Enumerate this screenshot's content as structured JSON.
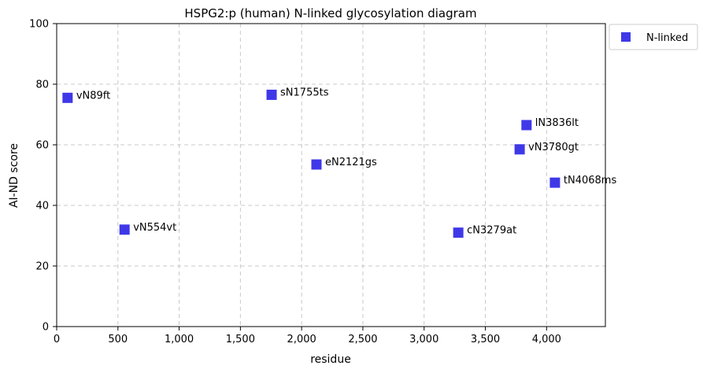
{
  "chart_data": {
    "type": "scatter",
    "title": "HSPG2:p (human) N-linked glycosylation diagram",
    "xlabel": "residue",
    "ylabel": "AI-ND score",
    "xlim": [
      0,
      4480
    ],
    "ylim": [
      0,
      100
    ],
    "xticks": [
      0,
      500,
      1000,
      1500,
      2000,
      2500,
      3000,
      3500,
      4000
    ],
    "xtick_labels": [
      "0",
      "500",
      "1,000",
      "1,500",
      "2,000",
      "2,500",
      "3,000",
      "3,500",
      "4,000"
    ],
    "yticks": [
      0,
      20,
      40,
      60,
      80,
      100
    ],
    "ytick_labels": [
      "0",
      "20",
      "40",
      "60",
      "80",
      "100"
    ],
    "grid": true,
    "legend_position": "outside-top-right",
    "marker": "square",
    "series": [
      {
        "name": "N-linked",
        "color": "#2a22e6",
        "points": [
          {
            "x": 89,
            "y": 75.5,
            "label": "vN89ft"
          },
          {
            "x": 554,
            "y": 32,
            "label": "vN554vt"
          },
          {
            "x": 1755,
            "y": 76.5,
            "label": "sN1755ts"
          },
          {
            "x": 2121,
            "y": 53.5,
            "label": "eN2121gs"
          },
          {
            "x": 3279,
            "y": 31,
            "label": "cN3279at"
          },
          {
            "x": 3780,
            "y": 58.5,
            "label": "vN3780gt"
          },
          {
            "x": 3836,
            "y": 66.5,
            "label": "lN3836lt"
          },
          {
            "x": 4068,
            "y": 47.5,
            "label": "tN4068ms"
          }
        ]
      }
    ]
  }
}
